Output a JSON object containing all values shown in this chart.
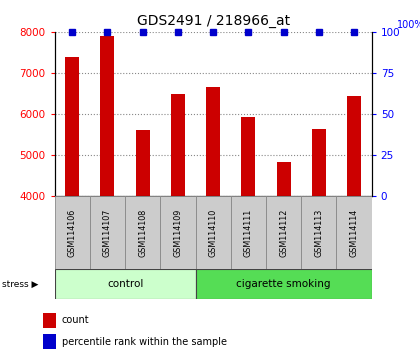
{
  "title": "GDS2491 / 218966_at",
  "samples": [
    "GSM114106",
    "GSM114107",
    "GSM114108",
    "GSM114109",
    "GSM114110",
    "GSM114111",
    "GSM114112",
    "GSM114113",
    "GSM114114"
  ],
  "counts": [
    7400,
    7900,
    5620,
    6500,
    6650,
    5930,
    4830,
    5650,
    6450
  ],
  "ylim_left": [
    4000,
    8000
  ],
  "ylim_right": [
    0,
    100
  ],
  "yticks_left": [
    4000,
    5000,
    6000,
    7000,
    8000
  ],
  "yticks_right": [
    0,
    25,
    50,
    75,
    100
  ],
  "groups": [
    {
      "label": "control",
      "start": 0,
      "end": 4,
      "color": "#ccffcc"
    },
    {
      "label": "cigarette smoking",
      "start": 4,
      "end": 9,
      "color": "#55dd55"
    }
  ],
  "bar_color": "#cc0000",
  "percentile_color": "#0000cc",
  "tick_label_bg": "#cccccc",
  "tick_label_edge": "#888888",
  "grid_color": "#888888",
  "legend_count_color": "#cc0000",
  "legend_pct_color": "#0000cc",
  "bar_width": 0.4
}
